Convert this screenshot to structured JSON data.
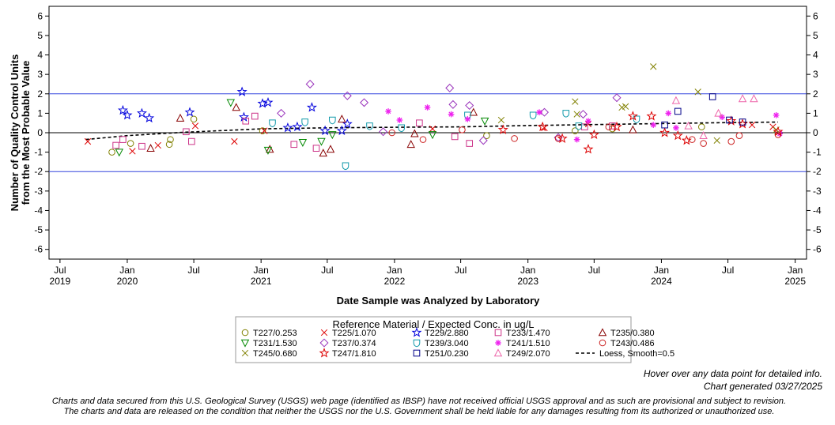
{
  "chart_data": {
    "type": "scatter",
    "title": "",
    "xlabel": "Date Sample was Analyzed by Laboratory",
    "ylabel_lines": [
      "Number of Quality Control Units",
      "from the Most Probable Value"
    ],
    "ylim": [
      -6.5,
      6.5
    ],
    "yticks": [
      -6,
      -5,
      -4,
      -3,
      -2,
      -1,
      0,
      1,
      2,
      3,
      4,
      5,
      6
    ],
    "xlim": [
      "2019-06-01",
      "2025-02-01"
    ],
    "xticks": [
      {
        "date": "2019-07-01",
        "label1": "Jul",
        "label2": "2019"
      },
      {
        "date": "2020-01-01",
        "label1": "Jan",
        "label2": "2020"
      },
      {
        "date": "2020-07-01",
        "label1": "Jul",
        "label2": ""
      },
      {
        "date": "2021-01-01",
        "label1": "Jan",
        "label2": "2021"
      },
      {
        "date": "2021-07-01",
        "label1": "Jul",
        "label2": ""
      },
      {
        "date": "2022-01-01",
        "label1": "Jan",
        "label2": "2022"
      },
      {
        "date": "2022-07-01",
        "label1": "Jul",
        "label2": ""
      },
      {
        "date": "2023-01-01",
        "label1": "Jan",
        "label2": "2023"
      },
      {
        "date": "2023-07-01",
        "label1": "Jul",
        "label2": ""
      },
      {
        "date": "2024-01-01",
        "label1": "Jan",
        "label2": "2024"
      },
      {
        "date": "2024-07-01",
        "label1": "Jul",
        "label2": ""
      },
      {
        "date": "2025-01-01",
        "label1": "Jan",
        "label2": "2025"
      }
    ],
    "reference_lines": [
      {
        "y": 2,
        "color": "#3344dd"
      },
      {
        "y": 0,
        "color": "#000000"
      },
      {
        "y": -2,
        "color": "#3344dd"
      }
    ],
    "legend_title": "Reference Material / Expected Conc. in ug/L",
    "legend_position": "bottom",
    "series": [
      {
        "name": "T227/0.253",
        "marker": "circle",
        "color": "#808000",
        "points": [
          [
            "2019-11-20",
            -1.0
          ],
          [
            "2020-01-10",
            -0.55
          ],
          [
            "2020-04-25",
            -0.6
          ],
          [
            "2020-04-28",
            -0.35
          ],
          [
            "2020-07-01",
            0.7
          ],
          [
            "2021-01-05",
            0.1
          ],
          [
            "2022-09-10",
            -0.15
          ],
          [
            "2023-05-10",
            0.1
          ],
          [
            "2023-08-20",
            0.2
          ],
          [
            "2024-04-20",
            0.3
          ]
        ]
      },
      {
        "name": "T225/1.070",
        "marker": "x",
        "color": "#dd0000",
        "points": [
          [
            "2019-09-15",
            -0.45
          ],
          [
            "2020-01-15",
            -0.95
          ],
          [
            "2020-03-25",
            -0.65
          ],
          [
            "2020-07-05",
            0.35
          ],
          [
            "2020-10-20",
            -0.45
          ],
          [
            "2021-01-10",
            0.1
          ],
          [
            "2022-04-15",
            0.2
          ],
          [
            "2023-02-15",
            0.25
          ],
          [
            "2023-06-15",
            0.45
          ],
          [
            "2024-09-05",
            0.4
          ],
          [
            "2024-11-01",
            0.3
          ]
        ]
      },
      {
        "name": "T229/2.880",
        "marker": "star",
        "color": "#0000dd",
        "points": [
          [
            "2019-12-20",
            1.15
          ],
          [
            "2020-01-01",
            0.9
          ],
          [
            "2020-02-10",
            1.0
          ],
          [
            "2020-03-01",
            0.75
          ],
          [
            "2020-06-20",
            1.05
          ],
          [
            "2020-11-10",
            2.1
          ],
          [
            "2020-11-15",
            0.8
          ],
          [
            "2021-01-05",
            1.5
          ],
          [
            "2021-01-20",
            1.55
          ],
          [
            "2021-03-15",
            0.25
          ],
          [
            "2021-04-10",
            0.3
          ],
          [
            "2021-05-20",
            1.3
          ],
          [
            "2021-06-25",
            0.1
          ],
          [
            "2021-08-10",
            0.1
          ],
          [
            "2021-08-25",
            0.45
          ]
        ]
      },
      {
        "name": "T233/1.470",
        "marker": "square",
        "color": "#cc3388",
        "points": [
          [
            "2019-12-01",
            -0.65
          ],
          [
            "2019-12-20",
            -0.35
          ],
          [
            "2020-02-10",
            -0.7
          ],
          [
            "2020-06-10",
            0.05
          ],
          [
            "2020-06-25",
            -0.45
          ],
          [
            "2020-11-20",
            0.6
          ],
          [
            "2020-12-15",
            0.85
          ],
          [
            "2021-04-01",
            -0.6
          ],
          [
            "2021-06-01",
            -0.8
          ],
          [
            "2022-03-10",
            0.5
          ],
          [
            "2022-06-15",
            -0.2
          ],
          [
            "2022-07-25",
            -0.55
          ],
          [
            "2023-06-05",
            0.3
          ],
          [
            "2023-08-20",
            0.35
          ]
        ]
      },
      {
        "name": "T235/0.380",
        "marker": "triangle",
        "color": "#880000",
        "points": [
          [
            "2020-03-05",
            -0.8
          ],
          [
            "2020-05-25",
            0.75
          ],
          [
            "2020-10-25",
            1.3
          ],
          [
            "2021-01-25",
            -0.85
          ],
          [
            "2021-06-20",
            -1.05
          ],
          [
            "2021-07-10",
            -0.85
          ],
          [
            "2021-08-10",
            0.7
          ],
          [
            "2022-02-15",
            -0.6
          ],
          [
            "2022-02-25",
            -0.05
          ],
          [
            "2022-08-05",
            1.05
          ],
          [
            "2023-10-15",
            0.15
          ]
        ]
      },
      {
        "name": "T231/1.530",
        "marker": "triangledown",
        "color": "#008800",
        "points": [
          [
            "2019-12-10",
            -1.0
          ],
          [
            "2020-10-10",
            1.55
          ],
          [
            "2021-01-20",
            -0.9
          ],
          [
            "2021-04-25",
            -0.5
          ],
          [
            "2021-06-15",
            -0.45
          ],
          [
            "2021-07-15",
            -0.1
          ],
          [
            "2022-04-15",
            -0.1
          ],
          [
            "2022-09-05",
            0.6
          ]
        ]
      },
      {
        "name": "T237/0.374",
        "marker": "diamond",
        "color": "#9933bb",
        "points": [
          [
            "2021-02-25",
            1.0
          ],
          [
            "2021-05-15",
            2.5
          ],
          [
            "2021-08-25",
            1.9
          ],
          [
            "2021-10-10",
            1.55
          ],
          [
            "2021-12-01",
            0.05
          ],
          [
            "2022-06-01",
            2.3
          ],
          [
            "2022-06-10",
            1.45
          ],
          [
            "2022-07-25",
            1.4
          ],
          [
            "2022-09-01",
            -0.4
          ],
          [
            "2023-02-15",
            1.05
          ],
          [
            "2023-03-25",
            -0.25
          ],
          [
            "2023-06-01",
            0.95
          ],
          [
            "2023-09-01",
            1.8
          ]
        ]
      },
      {
        "name": "T239/3.040",
        "marker": "shield",
        "color": "#1199aa",
        "points": [
          [
            "2021-02-01",
            0.5
          ],
          [
            "2021-05-01",
            0.55
          ],
          [
            "2021-07-15",
            0.65
          ],
          [
            "2021-08-20",
            -1.7
          ],
          [
            "2021-10-25",
            0.35
          ],
          [
            "2022-01-20",
            0.25
          ],
          [
            "2022-07-20",
            0.9
          ],
          [
            "2023-01-15",
            0.9
          ],
          [
            "2023-04-15",
            1.0
          ],
          [
            "2023-05-20",
            0.35
          ],
          [
            "2023-10-25",
            0.7
          ]
        ]
      },
      {
        "name": "T241/1.510",
        "marker": "asterisk",
        "color": "#ee22ee",
        "points": [
          [
            "2021-12-15",
            1.1
          ],
          [
            "2022-01-15",
            0.65
          ],
          [
            "2022-04-01",
            1.3
          ],
          [
            "2022-06-05",
            0.95
          ],
          [
            "2022-07-20",
            0.7
          ],
          [
            "2023-02-01",
            1.05
          ],
          [
            "2023-05-15",
            -0.35
          ],
          [
            "2023-06-15",
            0.6
          ],
          [
            "2023-12-10",
            0.4
          ],
          [
            "2024-01-20",
            1.0
          ],
          [
            "2024-02-10",
            0.25
          ],
          [
            "2024-06-15",
            0.8
          ],
          [
            "2024-11-10",
            0.9
          ],
          [
            "2024-11-20",
            -0.05
          ]
        ]
      },
      {
        "name": "T243/0.486",
        "marker": "circle",
        "color": "#cc2222",
        "points": [
          [
            "2021-12-25",
            0.0
          ],
          [
            "2022-03-20",
            -0.35
          ],
          [
            "2022-07-05",
            0.15
          ],
          [
            "2022-11-25",
            -0.3
          ],
          [
            "2023-03-25",
            -0.3
          ],
          [
            "2023-08-10",
            0.3
          ],
          [
            "2024-03-25",
            -0.35
          ],
          [
            "2024-04-25",
            -0.55
          ],
          [
            "2024-07-10",
            -0.45
          ],
          [
            "2024-08-01",
            -0.15
          ],
          [
            "2024-11-15",
            -0.1
          ]
        ]
      },
      {
        "name": "T245/0.680",
        "marker": "x",
        "color": "#808000",
        "points": [
          [
            "2022-10-20",
            0.65
          ],
          [
            "2023-05-10",
            1.6
          ],
          [
            "2023-05-15",
            0.95
          ],
          [
            "2023-09-15",
            1.3
          ],
          [
            "2023-09-25",
            1.35
          ],
          [
            "2023-12-10",
            3.4
          ],
          [
            "2024-04-10",
            2.1
          ],
          [
            "2024-06-01",
            -0.4
          ],
          [
            "2024-11-10",
            0.15
          ]
        ]
      },
      {
        "name": "T247/1.810",
        "marker": "star",
        "color": "#dd0000",
        "points": [
          [
            "2022-10-25",
            0.15
          ],
          [
            "2023-02-10",
            0.3
          ],
          [
            "2023-04-05",
            -0.3
          ],
          [
            "2023-06-15",
            -0.85
          ],
          [
            "2023-07-01",
            -0.1
          ],
          [
            "2023-09-01",
            0.3
          ],
          [
            "2023-10-15",
            0.85
          ],
          [
            "2023-12-05",
            0.85
          ],
          [
            "2024-01-10",
            0.0
          ],
          [
            "2024-02-15",
            -0.15
          ],
          [
            "2024-03-10",
            -0.4
          ],
          [
            "2024-07-10",
            0.6
          ],
          [
            "2024-08-10",
            0.45
          ],
          [
            "2024-11-15",
            0.05
          ]
        ]
      },
      {
        "name": "T251/0.230",
        "marker": "square",
        "color": "#000088",
        "points": [
          [
            "2024-01-10",
            0.4
          ],
          [
            "2024-02-15",
            1.1
          ],
          [
            "2024-05-20",
            1.85
          ],
          [
            "2024-07-05",
            0.65
          ],
          [
            "2024-08-10",
            0.55
          ]
        ]
      },
      {
        "name": "T249/2.070",
        "marker": "triangle",
        "color": "#ee66aa",
        "points": [
          [
            "2024-02-10",
            1.65
          ],
          [
            "2024-03-15",
            0.35
          ],
          [
            "2024-04-25",
            -0.15
          ],
          [
            "2024-06-05",
            1.0
          ],
          [
            "2024-08-10",
            1.75
          ],
          [
            "2024-09-10",
            1.75
          ]
        ]
      }
    ],
    "loess": {
      "name": "Loess, Smooth=0.5",
      "color": "#000000",
      "points": [
        [
          "2019-09-10",
          -0.35
        ],
        [
          "2020-01-01",
          -0.15
        ],
        [
          "2020-06-01",
          0.02
        ],
        [
          "2020-10-01",
          0.12
        ],
        [
          "2021-01-01",
          0.2
        ],
        [
          "2021-07-01",
          0.25
        ],
        [
          "2022-01-01",
          0.28
        ],
        [
          "2022-07-01",
          0.3
        ],
        [
          "2023-01-01",
          0.37
        ],
        [
          "2023-07-01",
          0.42
        ],
        [
          "2024-01-01",
          0.47
        ],
        [
          "2024-07-01",
          0.52
        ],
        [
          "2024-11-15",
          0.55
        ]
      ]
    }
  },
  "footer": {
    "hover_note": "Hover over any data point for detailed info.",
    "generated": "Chart generated 03/27/2025",
    "disclaimer1": "Charts and data secured from this U.S. Geological Survey (USGS) web page (identified as IBSP) have not received official USGS approval and as such are provisional and subject to revision.",
    "disclaimer2": "The charts and data are released on the condition that neither the USGS nor the U.S. Government shall be held liable for any damages resulting from its authorized or unauthorized use."
  }
}
